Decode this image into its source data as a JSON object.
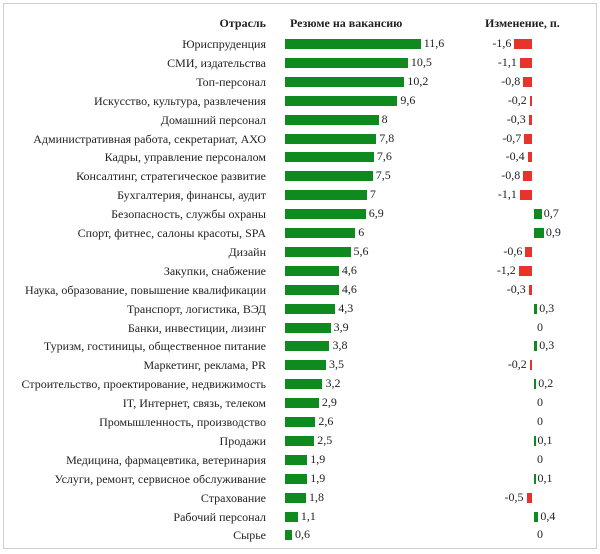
{
  "chart_data": {
    "type": "bar",
    "headers": {
      "category": "Отрасль",
      "value": "Резюме на вакансию",
      "change": "Изменение, п."
    },
    "categories": [
      "Юриспруденция",
      "СМИ, издательства",
      "Топ-персонал",
      "Искусство, культура, развлечения",
      "Домашний персонал",
      "Административная работа, секретариат, АХО",
      "Кадры, управление персоналом",
      "Консалтинг, стратегическое развитие",
      "Бухгалтерия, финансы, аудит",
      "Безопасность, службы охраны",
      "Спорт, фитнес, салоны красоты, SPA",
      "Дизайн",
      "Закупки, снабжение",
      "Наука, образование, повышение квалификации",
      "Транспорт, логистика, ВЭД",
      "Банки, инвестиции, лизинг",
      "Туризм, гостиницы, общественное питание",
      "Маркетинг, реклама, PR",
      "Строительство, проектирование, недвижимость",
      "IT, Интернет, связь, телеком",
      "Промышленность, производство",
      "Продажи",
      "Медицина, фармацевтика, ветеринария",
      "Услуги, ремонт, сервисное обслуживание",
      "Страхование",
      "Рабочий персонал",
      "Сырье"
    ],
    "series": [
      {
        "name": "Резюме на вакансию",
        "values": [
          11.6,
          10.5,
          10.2,
          9.6,
          8,
          7.8,
          7.6,
          7.5,
          7,
          6.9,
          6,
          5.6,
          4.6,
          4.6,
          4.3,
          3.9,
          3.8,
          3.5,
          3.2,
          2.9,
          2.6,
          2.5,
          1.9,
          1.9,
          1.8,
          1.1,
          0.6
        ],
        "labels": [
          "11,6",
          "10,5",
          "10,2",
          "9,6",
          "8",
          "7,8",
          "7,6",
          "7,5",
          "7",
          "6,9",
          "6",
          "5,6",
          "4,6",
          "4,6",
          "4,3",
          "3,9",
          "3,8",
          "3,5",
          "3,2",
          "2,9",
          "2,6",
          "2,5",
          "1,9",
          "1,9",
          "1,8",
          "1,1",
          "0,6"
        ]
      },
      {
        "name": "Изменение, п.",
        "values": [
          -1.6,
          -1.1,
          -0.8,
          -0.2,
          -0.3,
          -0.7,
          -0.4,
          -0.8,
          -1.1,
          0.7,
          0.9,
          -0.6,
          -1.2,
          -0.3,
          0.3,
          0,
          0.3,
          -0.2,
          0.2,
          0,
          0,
          0.1,
          0,
          0.1,
          -0.5,
          0.4,
          0
        ],
        "labels": [
          "-1,6",
          "-1,1",
          "-0,8",
          "-0,2",
          "-0,3",
          "-0,7",
          "-0,4",
          "-0,8",
          "-1,1",
          "0,7",
          "0,9",
          "-0,6",
          "-1,2",
          "-0,3",
          "0,3",
          "0",
          "0,3",
          "-0,2",
          "0,2",
          "0",
          "0",
          "0,1",
          "0",
          "0,1",
          "-0,5",
          "0,4",
          "0"
        ]
      }
    ],
    "colors": {
      "positive": "#0f8a1f",
      "negative": "#e8332a"
    }
  }
}
